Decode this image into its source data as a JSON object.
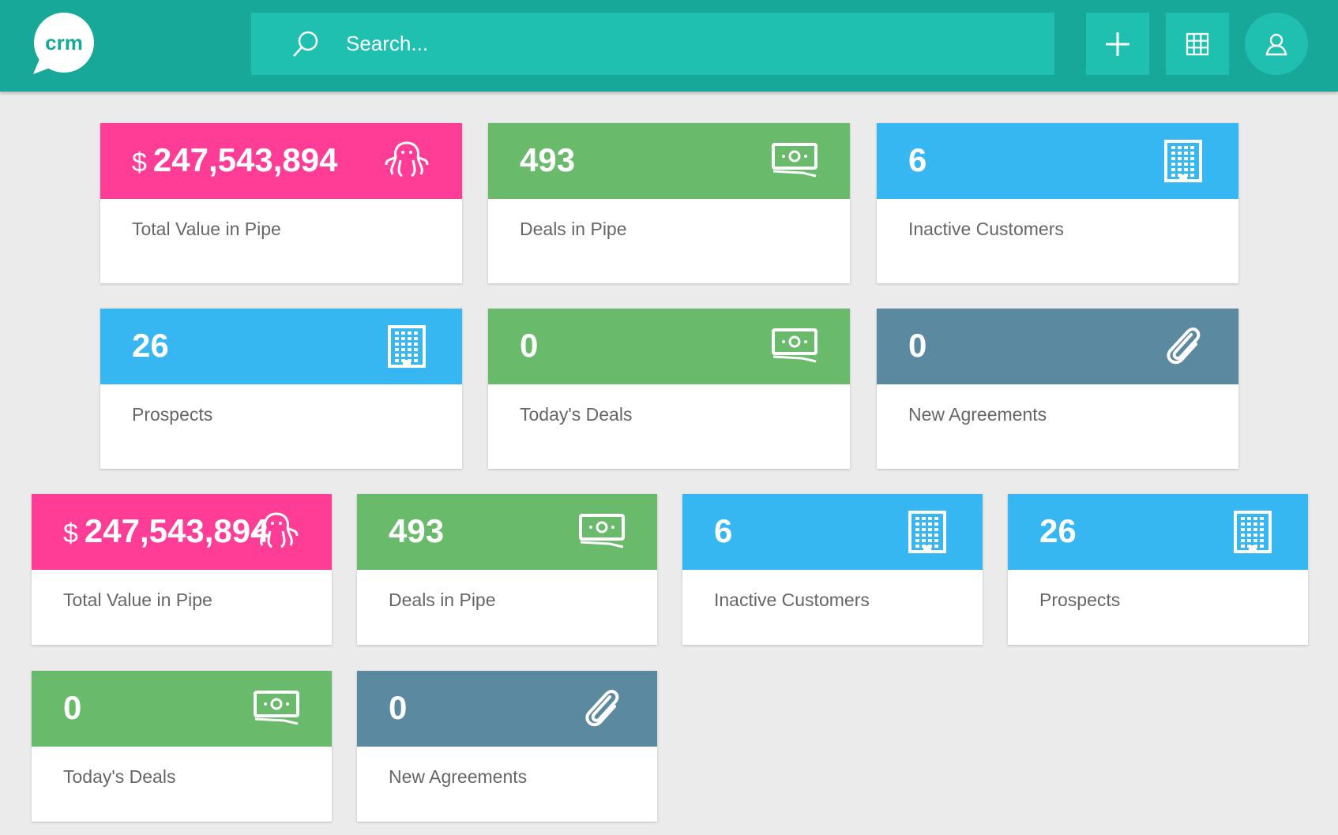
{
  "header": {
    "logo": "crm",
    "search_placeholder": "Search..."
  },
  "cards_large": [
    {
      "prefix": "$",
      "value": "247,543,894",
      "label": "Total Value in Pipe"
    },
    {
      "value": "493",
      "label": "Deals in Pipe"
    },
    {
      "value": "6",
      "label": "Inactive Customers"
    },
    {
      "value": "26",
      "label": "Prospects"
    },
    {
      "value": "0",
      "label": "Today's Deals"
    },
    {
      "value": "0",
      "label": "New Agreements"
    }
  ],
  "cards_small": [
    {
      "prefix": "$",
      "value": "247,543,894",
      "label": "Total Value in Pipe"
    },
    {
      "value": "493",
      "label": "Deals in Pipe"
    },
    {
      "value": "6",
      "label": "Inactive Customers"
    },
    {
      "value": "26",
      "label": "Prospects"
    },
    {
      "value": "0",
      "label": "Today's Deals"
    },
    {
      "value": "0",
      "label": "New Agreements"
    }
  ]
}
